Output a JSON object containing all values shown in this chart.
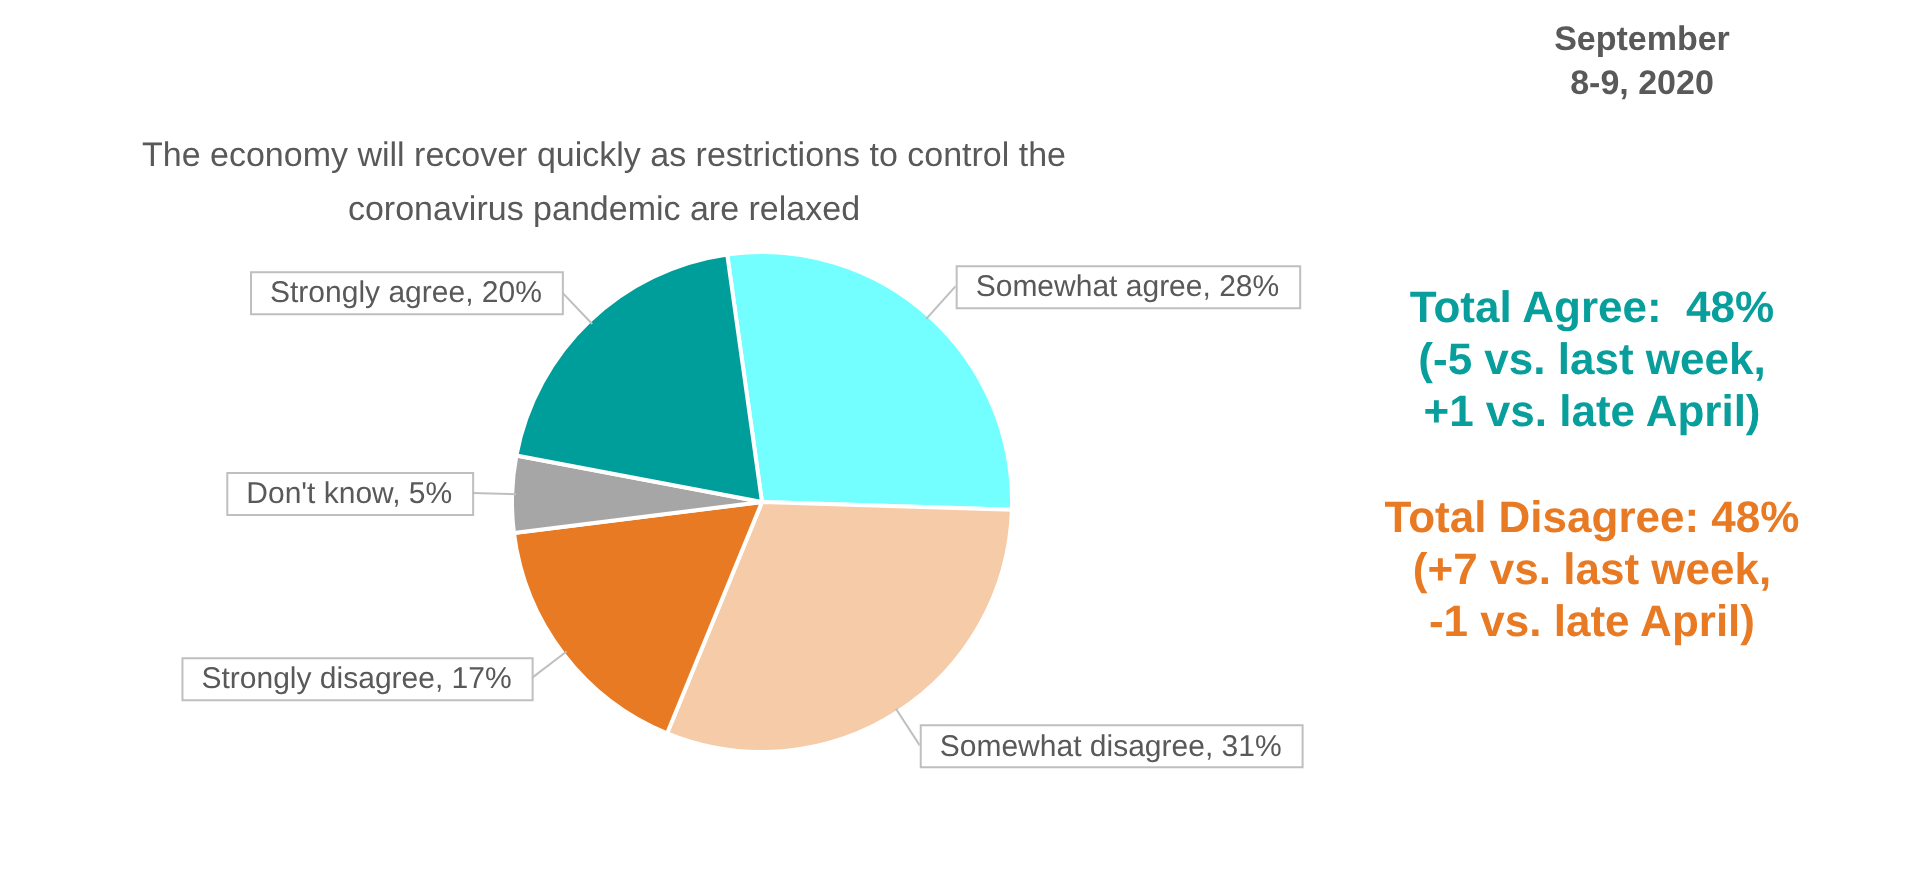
{
  "chart_data": {
    "type": "pie",
    "title": "The economy will recover quickly as restrictions to control the coronavirus pandemic are relaxed",
    "categories": [
      "Somewhat agree",
      "Somewhat disagree",
      "Strongly disagree",
      "Don't know",
      "Strongly agree"
    ],
    "values": [
      28,
      31,
      17,
      5,
      20
    ],
    "colors": [
      "#73ffff",
      "#f6cba7",
      "#e87a24",
      "#a6a6a6",
      "#009e9a"
    ],
    "value_labels": [
      "28%",
      "31%",
      "17%",
      "5%",
      "20%"
    ],
    "annotations": [
      "September\n8-9, 2020",
      "Total Agree:  48%\n(-5 vs. last week,\n+1 vs. late April)",
      "Total Disagree: 48%\n(+7 vs. last week,\n-1 vs. late April)"
    ]
  }
}
